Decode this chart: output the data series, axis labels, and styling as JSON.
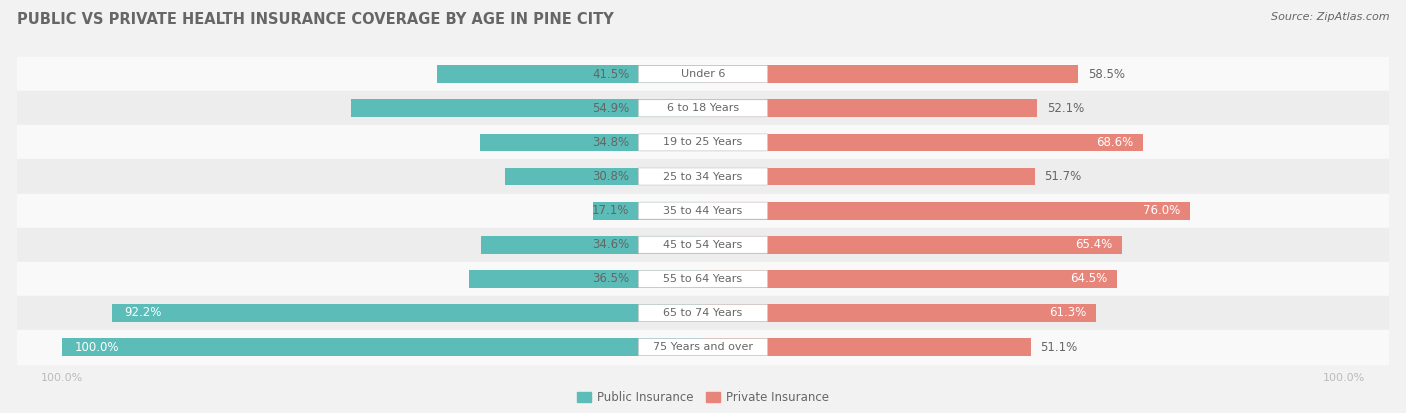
{
  "title": "PUBLIC VS PRIVATE HEALTH INSURANCE COVERAGE BY AGE IN PINE CITY",
  "source": "Source: ZipAtlas.com",
  "categories": [
    "Under 6",
    "6 to 18 Years",
    "19 to 25 Years",
    "25 to 34 Years",
    "35 to 44 Years",
    "45 to 54 Years",
    "55 to 64 Years",
    "65 to 74 Years",
    "75 Years and over"
  ],
  "public_values": [
    41.5,
    54.9,
    34.8,
    30.8,
    17.1,
    34.6,
    36.5,
    92.2,
    100.0
  ],
  "private_values": [
    58.5,
    52.1,
    68.6,
    51.7,
    76.0,
    65.4,
    64.5,
    61.3,
    51.1
  ],
  "public_color": "#5bbcb8",
  "private_color": "#e8857a",
  "bg_color": "#f2f2f2",
  "row_bg_colors": [
    "#f9f9f9",
    "#ededee"
  ],
  "title_color": "#666666",
  "text_color": "#666666",
  "axis_label_color": "#bbbbbb",
  "legend_label_public": "Public Insurance",
  "legend_label_private": "Private Insurance",
  "max_val": 100.0,
  "title_fontsize": 10.5,
  "source_fontsize": 8,
  "bar_label_fontsize": 8.5,
  "category_fontsize": 8,
  "axis_fontsize": 8,
  "legend_fontsize": 8.5
}
